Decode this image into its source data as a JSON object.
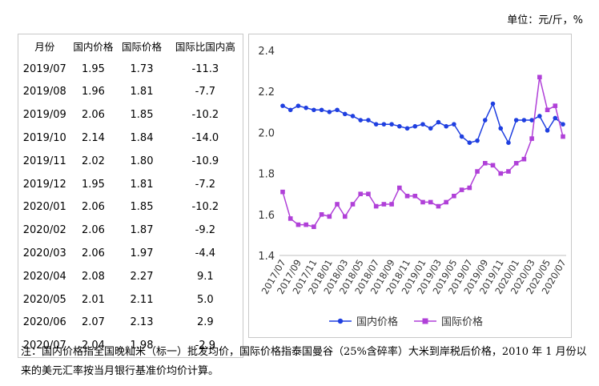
{
  "unit_label": "单位：元/斤，%",
  "table": {
    "headers": [
      "月份",
      "国内价格",
      "国际价格",
      "国际比国内高"
    ],
    "rows": [
      [
        "2019/07",
        "1.95",
        "1.73",
        "-11.3"
      ],
      [
        "2019/08",
        "1.96",
        "1.81",
        "-7.7"
      ],
      [
        "2019/09",
        "2.06",
        "1.85",
        "-10.2"
      ],
      [
        "2019/10",
        "2.14",
        "1.84",
        "-14.0"
      ],
      [
        "2019/11",
        "2.02",
        "1.80",
        "-10.9"
      ],
      [
        "2019/12",
        "1.95",
        "1.81",
        "-7.2"
      ],
      [
        "2020/01",
        "2.06",
        "1.85",
        "-10.2"
      ],
      [
        "2020/02",
        "2.06",
        "1.87",
        "-9.2"
      ],
      [
        "2020/03",
        "2.06",
        "1.97",
        "-4.4"
      ],
      [
        "2020/04",
        "2.08",
        "2.27",
        "9.1"
      ],
      [
        "2020/05",
        "2.01",
        "2.11",
        "5.0"
      ],
      [
        "2020/06",
        "2.07",
        "2.13",
        "2.9"
      ],
      [
        "2020/07",
        "2.04",
        "1.98",
        "-2.9"
      ]
    ]
  },
  "chart_data": {
    "type": "line",
    "x": [
      "2017/07",
      "2017/08",
      "2017/09",
      "2017/10",
      "2017/11",
      "2017/12",
      "2018/01",
      "2018/02",
      "2018/03",
      "2018/04",
      "2018/05",
      "2018/06",
      "2018/07",
      "2018/08",
      "2018/09",
      "2018/10",
      "2018/11",
      "2018/12",
      "2019/01",
      "2019/02",
      "2019/03",
      "2019/04",
      "2019/05",
      "2019/06",
      "2019/07",
      "2019/08",
      "2019/09",
      "2019/10",
      "2019/11",
      "2019/12",
      "2020/01",
      "2020/02",
      "2020/03",
      "2020/04",
      "2020/05",
      "2020/06",
      "2020/07"
    ],
    "x_tick_labels": [
      "2017/07",
      "2017/09",
      "2017/11",
      "2018/01",
      "2018/03",
      "2018/05",
      "2018/07",
      "2018/09",
      "2018/11",
      "2019/01",
      "2019/03",
      "2019/05",
      "2019/07",
      "2019/09",
      "2019/11",
      "2020/01",
      "2020/03",
      "2020/05",
      "2020/07"
    ],
    "series": [
      {
        "name": "国内价格",
        "color": "#1f3fe0",
        "marker": "circle",
        "values": [
          2.13,
          2.11,
          2.13,
          2.12,
          2.11,
          2.11,
          2.1,
          2.11,
          2.09,
          2.08,
          2.06,
          2.06,
          2.04,
          2.04,
          2.04,
          2.03,
          2.02,
          2.03,
          2.04,
          2.02,
          2.05,
          2.03,
          2.04,
          1.98,
          1.95,
          1.96,
          2.06,
          2.14,
          2.02,
          1.95,
          2.06,
          2.06,
          2.06,
          2.08,
          2.01,
          2.07,
          2.04
        ]
      },
      {
        "name": "国际价格",
        "color": "#b040d8",
        "marker": "square",
        "values": [
          1.71,
          1.58,
          1.55,
          1.55,
          1.54,
          1.6,
          1.59,
          1.65,
          1.59,
          1.65,
          1.7,
          1.7,
          1.64,
          1.65,
          1.65,
          1.73,
          1.69,
          1.69,
          1.66,
          1.66,
          1.64,
          1.66,
          1.69,
          1.72,
          1.73,
          1.81,
          1.85,
          1.84,
          1.8,
          1.81,
          1.85,
          1.87,
          1.97,
          2.27,
          2.11,
          2.13,
          1.98
        ]
      }
    ],
    "ylim": [
      1.4,
      2.4
    ],
    "y_ticks": [
      "1.4",
      "1.6",
      "1.8",
      "2.0",
      "2.2",
      "2.4"
    ],
    "grid": false,
    "legend": "bottom"
  },
  "note": "注：国内价格指全国晚籼米（标一）批发均价，国际价格指泰国曼谷（25%含碎率）大米到岸税后价格，2010 年 1 月份以来的美元汇率按当月银行基准价均价计算。"
}
